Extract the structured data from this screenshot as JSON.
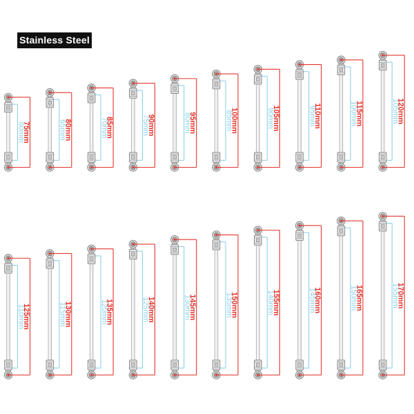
{
  "badge": {
    "label": "Stainless Steel"
  },
  "colors": {
    "dimension_outer": "#e5342c",
    "dimension_inner": "#8fd0e6",
    "badge_bg": "#111111",
    "badge_text": "#ffffff",
    "metal_outline": "#8a8a8a",
    "metal_fill": "#e8e8e8"
  },
  "rows": [
    {
      "rods": [
        {
          "outer_label": "75mm",
          "inner_label": "60mm",
          "outer_mm": 75,
          "inner_mm": 60
        },
        {
          "outer_label": "80mm",
          "inner_label": "65mm",
          "outer_mm": 80,
          "inner_mm": 65
        },
        {
          "outer_label": "85mm",
          "inner_label": "70mm",
          "outer_mm": 85,
          "inner_mm": 70
        },
        {
          "outer_label": "90mm",
          "inner_label": "75mm",
          "outer_mm": 90,
          "inner_mm": 75
        },
        {
          "outer_label": "95mm",
          "inner_label": "80mm",
          "outer_mm": 95,
          "inner_mm": 80
        },
        {
          "outer_label": "100mm",
          "inner_label": "85mm",
          "outer_mm": 100,
          "inner_mm": 85
        },
        {
          "outer_label": "105mm",
          "inner_label": "90mm",
          "outer_mm": 105,
          "inner_mm": 90
        },
        {
          "outer_label": "110mm",
          "inner_label": "95mm",
          "outer_mm": 110,
          "inner_mm": 95
        },
        {
          "outer_label": "115mm",
          "inner_label": "100mm",
          "outer_mm": 115,
          "inner_mm": 100
        },
        {
          "outer_label": "120mm",
          "inner_label": "105mm",
          "outer_mm": 120,
          "inner_mm": 105
        }
      ]
    },
    {
      "rods": [
        {
          "outer_label": "125mm",
          "inner_label": "110mm",
          "outer_mm": 125,
          "inner_mm": 110
        },
        {
          "outer_label": "130mm",
          "inner_label": "115mm",
          "outer_mm": 130,
          "inner_mm": 115
        },
        {
          "outer_label": "135mm",
          "inner_label": "120mm",
          "outer_mm": 135,
          "inner_mm": 120
        },
        {
          "outer_label": "140mm",
          "inner_label": "125mm",
          "outer_mm": 140,
          "inner_mm": 125
        },
        {
          "outer_label": "145mm",
          "inner_label": "130mm",
          "outer_mm": 145,
          "inner_mm": 130
        },
        {
          "outer_label": "150mm",
          "inner_label": "135mm",
          "outer_mm": 150,
          "inner_mm": 135
        },
        {
          "outer_label": "155mm",
          "inner_label": "140mm",
          "outer_mm": 155,
          "inner_mm": 140
        },
        {
          "outer_label": "160mm",
          "inner_label": "145mm",
          "outer_mm": 160,
          "inner_mm": 145
        },
        {
          "outer_label": "165mm",
          "inner_label": "150mm",
          "outer_mm": 165,
          "inner_mm": 150
        },
        {
          "outer_label": "170mm",
          "inner_label": "155mm",
          "outer_mm": 170,
          "inner_mm": 155
        }
      ]
    }
  ]
}
